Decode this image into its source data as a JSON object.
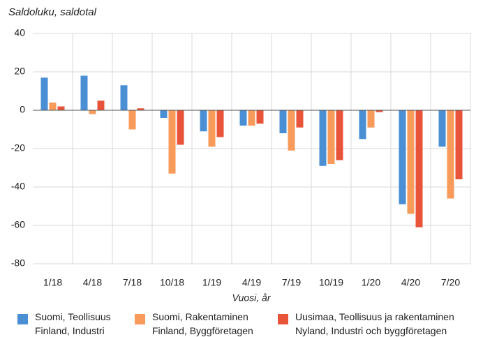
{
  "chart_data": {
    "type": "bar",
    "title": "Saldoluku, saldotal",
    "x_label": "Vuosi, år",
    "categories": [
      "1/18",
      "4/18",
      "7/18",
      "10/18",
      "1/19",
      "4/19",
      "7/19",
      "10/19",
      "1/20",
      "4/20",
      "7/20"
    ],
    "series": [
      {
        "name": "Suomi, Teollisuus\nFinland, Industri",
        "color": "#4a8fd4",
        "values": [
          17,
          18,
          13,
          -4,
          -11,
          -8,
          -12,
          -29,
          -15,
          -49,
          -19
        ]
      },
      {
        "name": "Suomi, Rakentaminen\nFinland, Byggföretagen",
        "color": "#f79a5a",
        "values": [
          4,
          -2,
          -10,
          -33,
          -19,
          -8,
          -21,
          -28,
          -9,
          -54,
          -46
        ]
      },
      {
        "name": "Uusimaa, Teollisuus ja rakentaminen\nNyland, Industri och byggföretagen",
        "color": "#e8543a",
        "values": [
          2,
          5,
          1,
          -18,
          -14,
          -7,
          -9,
          -26,
          -1,
          -61,
          -36
        ]
      }
    ],
    "ylim": [
      -80,
      40
    ],
    "yticks": [
      -80,
      -60,
      -40,
      -20,
      0,
      20,
      40
    ],
    "grid": true
  }
}
